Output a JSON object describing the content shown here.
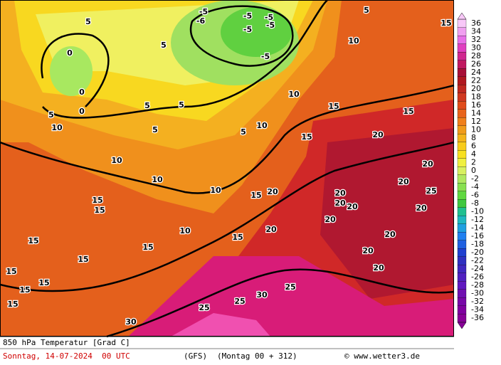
{
  "map": {
    "colorbar": {
      "ticks": [
        36,
        34,
        32,
        30,
        28,
        26,
        24,
        22,
        20,
        18,
        16,
        14,
        12,
        10,
        8,
        6,
        4,
        2,
        0,
        -2,
        -4,
        -6,
        -8,
        -10,
        -12,
        -14,
        -16,
        -18,
        -20,
        -22,
        -24,
        -26,
        -28,
        -30,
        -32,
        -34,
        -36
      ],
      "colors": [
        "#f8c8f8",
        "#f0a0f0",
        "#e870e8",
        "#e040c0",
        "#d02890",
        "#c01860",
        "#a81038",
        "#b01820",
        "#c02820",
        "#d03820",
        "#e04c1c",
        "#e8641c",
        "#f0801c",
        "#f09c1c",
        "#f4b41c",
        "#f8cc1c",
        "#f8e020",
        "#f0f040",
        "#d8f060",
        "#b0e860",
        "#88e050",
        "#60d840",
        "#40c840",
        "#20c090",
        "#20b8c0",
        "#20a0e0",
        "#2080f0",
        "#2060e0",
        "#2040d0",
        "#3030c0",
        "#4028c0",
        "#5020c0",
        "#6018c0",
        "#7010b0",
        "#7808a8",
        "#8000a0",
        "#880098"
      ]
    },
    "contour_labels": [
      10,
      5,
      15,
      0,
      5,
      10,
      5,
      5,
      5,
      5,
      10,
      10,
      15,
      15,
      20,
      15,
      10,
      10,
      10,
      15,
      15,
      15,
      20,
      20,
      20,
      20,
      20,
      20,
      25,
      20,
      20,
      20,
      20,
      10,
      15,
      15,
      15,
      15,
      15,
      15,
      15,
      15,
      20,
      20,
      25,
      30,
      25,
      25,
      30,
      -5,
      -6,
      -5,
      -5,
      -5,
      -5,
      -5,
      5,
      5,
      0,
      0
    ],
    "footer": {
      "parameter": "850 hPa Temperatur [Grad C]",
      "date": "Sonntag, 14-07-2024  00 UTC",
      "model": "(GFS)",
      "run": "(Montag 00 + 312)",
      "credit": "© www.wetter3.de"
    }
  }
}
